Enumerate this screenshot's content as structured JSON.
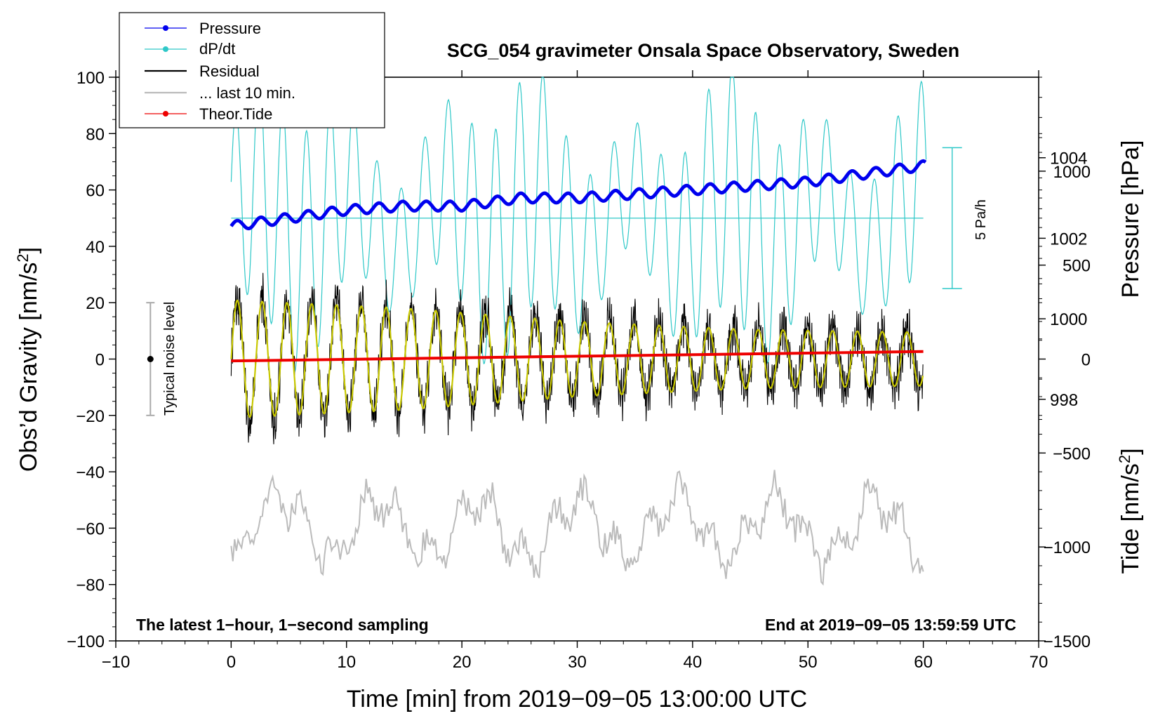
{
  "chart_data": {
    "type": "line",
    "title": "SCG_054 gravimeter Onsala Space Observatory, Sweden",
    "xlabel": "Time [min] from 2019−09−05 13:00:00 UTC",
    "ylabel_left": "Obs’d Gravity [nm/s",
    "ylabel_sup": "2",
    "ylabel_close": "]",
    "ylabel_pressure": "Pressure [hPa]",
    "ylabel_tide": "Tide [nm/s",
    "xlim": [
      -10,
      70
    ],
    "ylim": [
      -100,
      100
    ],
    "x_ticks": [
      "−10",
      "0",
      "10",
      "20",
      "30",
      "40",
      "50",
      "60",
      "70"
    ],
    "y_ticks": [
      "−100",
      "−80",
      "−60",
      "−40",
      "−20",
      "0",
      "20",
      "40",
      "60",
      "80",
      "100"
    ],
    "pressure_axis": {
      "range_hpa": [
        992,
        1006
      ],
      "ticks": [
        "998",
        "1000",
        "1002",
        "1004"
      ]
    },
    "tide_axis": {
      "range": [
        -1500,
        1500
      ],
      "ticks": [
        "1000",
        "500",
        "0",
        "−500",
        "−1000",
        "−1500"
      ]
    },
    "legend": {
      "pressure": "Pressure",
      "dpdt": "dP/dt",
      "residual": "Residual",
      "last10": "... last 10 min.",
      "tide": "Theor.Tide"
    },
    "colors": {
      "pressure": "#0000ee",
      "dpdt": "#2ec8c8",
      "residual": "#000000",
      "fit": "#c8c800",
      "last10": "#bbbbbb",
      "tide": "#ee0000"
    },
    "noise_label": "Typical noise level",
    "noise_bar": {
      "x": -7,
      "y": 0,
      "half_range": 20
    },
    "dpdt_scale_label": "5 Pa/h",
    "dpdt_baseline_y": 50,
    "note_left": "The latest 1−hour, 1−second sampling",
    "note_right": "End at 2019−09−05 13:59:59 UTC",
    "series": [
      {
        "name": "Pressure",
        "unit": "hPa",
        "x": [
          0,
          5,
          10,
          15,
          20,
          25,
          30,
          35,
          40,
          45,
          50,
          55,
          60
        ],
        "values": [
          1002.3,
          1002.5,
          1002.7,
          1002.8,
          1002.8,
          1003.0,
          1003.0,
          1003.1,
          1003.2,
          1003.3,
          1003.4,
          1003.6,
          1003.8
        ]
      },
      {
        "name": "Residual",
        "unit": "nm/s2",
        "amplitude_envelope": {
          "x": [
            0,
            15,
            30,
            45,
            60
          ],
          "values": [
            22,
            19,
            14,
            11,
            10
          ]
        },
        "period_min": 2.15
      },
      {
        "name": "Theor.Tide",
        "unit": "nm/s2",
        "x": [
          0,
          60
        ],
        "values": [
          -10,
          40
        ]
      }
    ]
  }
}
